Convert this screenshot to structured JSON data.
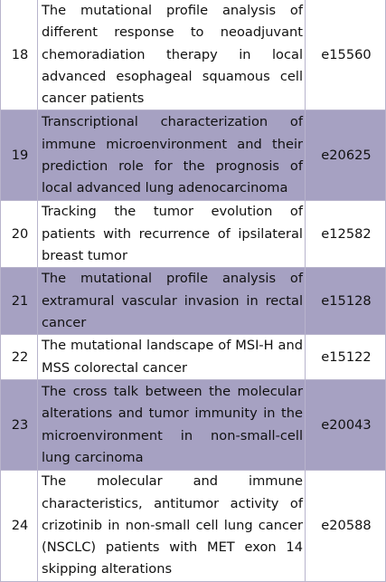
{
  "table": {
    "rows": [
      {
        "number": "18",
        "title": "The mutational profile analysis of different response to neoadjuvant chemoradiation therapy in local advanced esophageal squamous cell cancer patients",
        "code": "e15560",
        "shaded": false
      },
      {
        "number": "19",
        "title": "Transcriptional characterization of immune microenvironment and their prediction role for the prognosis of local advanced lung adenocarcinoma",
        "code": "e20625",
        "shaded": true
      },
      {
        "number": "20",
        "title": "Tracking the tumor evolution of patients with recurrence of ipsilateral breast tumor",
        "code": "e12582",
        "shaded": false
      },
      {
        "number": "21",
        "title": "The mutational profile analysis of extramural vascular invasion in rectal cancer",
        "code": "e15128",
        "shaded": true
      },
      {
        "number": "22",
        "title": "The mutational landscape of MSI-H and MSS colorectal cancer",
        "code": "e15122",
        "shaded": false
      },
      {
        "number": "23",
        "title": "The cross talk between the molecular alterations and tumor immunity in the microenvironment in non-small-cell lung carcinoma",
        "code": "e20043",
        "shaded": true
      },
      {
        "number": "24",
        "title": "The molecular and immune characteristics, antitumor activity of crizotinib in non-small cell lung cancer (NSCLC) patients with MET exon 14 skipping alterations",
        "code": "e20588",
        "shaded": false
      }
    ]
  },
  "colors": {
    "shaded_row": "#a6a1c2",
    "plain_row": "#ffffff",
    "border": "#b8b4cc",
    "text": "#111111"
  }
}
